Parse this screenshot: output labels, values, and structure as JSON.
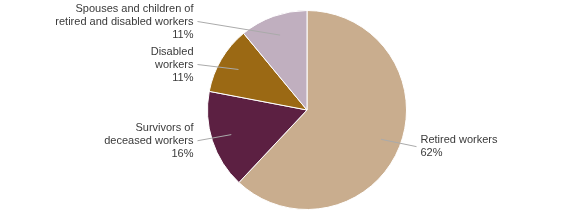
{
  "chart_data": {
    "type": "pie",
    "categories": [
      "Retired workers",
      "Survivors of\ndeceased workers",
      "Disabled\nworkers",
      "Spouses and children of\nretired and disabled workers"
    ],
    "values": [
      62,
      16,
      11,
      11
    ],
    "value_labels": [
      "62%",
      "16%",
      "11%",
      "11%"
    ],
    "colors": [
      "#c9ad8e",
      "#5c2042",
      "#9b6914",
      "#c0afbf"
    ],
    "data_labels": true
  }
}
